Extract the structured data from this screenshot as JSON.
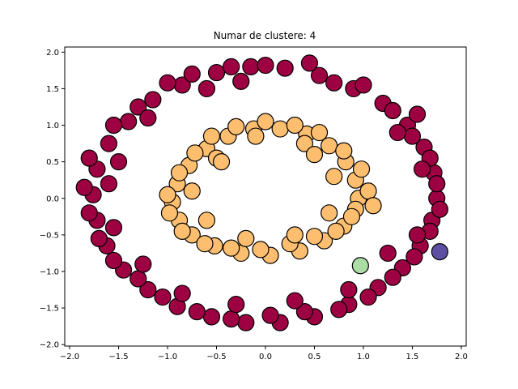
{
  "chart_data": {
    "type": "scatter",
    "title": "Numar de clustere: 4",
    "xlabel": "",
    "ylabel": "",
    "xlim": [
      -2.05,
      2.05
    ],
    "ylim": [
      -2.02,
      2.07
    ],
    "xticks": [
      -2.0,
      -1.5,
      -1.0,
      -0.5,
      0.0,
      0.5,
      1.0,
      1.5,
      2.0
    ],
    "xtick_labels": [
      "−2.0",
      "−1.5",
      "−1.0",
      "−0.5",
      "0.0",
      "0.5",
      "1.0",
      "1.5",
      "2.0"
    ],
    "yticks": [
      -2.0,
      -1.5,
      -1.0,
      -0.5,
      0.0,
      0.5,
      1.0,
      1.5,
      2.0
    ],
    "ytick_labels": [
      "−2.0",
      "−1.5",
      "−1.0",
      "−0.5",
      "0.0",
      "0.5",
      "1.0",
      "1.5",
      "2.0"
    ],
    "grid": false,
    "legend": null,
    "marker_edge_color": "#000000",
    "clusters": [
      {
        "color": "#9e0142",
        "description_shape": "outer ring",
        "points": [
          [
            1.75,
            0.0
          ],
          [
            1.72,
            0.35
          ],
          [
            1.62,
            0.7
          ],
          [
            1.45,
            1.0
          ],
          [
            1.2,
            1.3
          ],
          [
            0.9,
            1.5
          ],
          [
            0.55,
            1.68
          ],
          [
            0.2,
            1.78
          ],
          [
            -0.15,
            1.8
          ],
          [
            -0.5,
            1.72
          ],
          [
            -0.85,
            1.55
          ],
          [
            -1.15,
            1.35
          ],
          [
            -1.4,
            1.05
          ],
          [
            -1.6,
            0.75
          ],
          [
            -1.72,
            0.4
          ],
          [
            -1.76,
            0.05
          ],
          [
            -1.72,
            -0.3
          ],
          [
            -1.62,
            -0.65
          ],
          [
            -1.45,
            -0.98
          ],
          [
            -1.2,
            -1.25
          ],
          [
            -0.9,
            -1.48
          ],
          [
            -0.55,
            -1.62
          ],
          [
            -0.2,
            -1.7
          ],
          [
            0.15,
            -1.7
          ],
          [
            0.5,
            -1.62
          ],
          [
            0.85,
            -1.45
          ],
          [
            1.15,
            -1.22
          ],
          [
            1.4,
            -0.95
          ],
          [
            1.58,
            -0.65
          ],
          [
            1.7,
            -0.3
          ],
          [
            1.55,
            1.15
          ],
          [
            1.3,
            1.2
          ],
          [
            1.0,
            1.55
          ],
          [
            0.45,
            1.85
          ],
          [
            0.0,
            1.82
          ],
          [
            -0.35,
            1.8
          ],
          [
            -0.75,
            1.7
          ],
          [
            -1.0,
            1.58
          ],
          [
            -1.3,
            1.25
          ],
          [
            -1.55,
            1.0
          ],
          [
            -1.8,
            0.55
          ],
          [
            -1.85,
            0.15
          ],
          [
            -1.8,
            -0.2
          ],
          [
            -1.7,
            -0.55
          ],
          [
            -1.55,
            -0.85
          ],
          [
            -1.3,
            -1.1
          ],
          [
            -1.05,
            -1.35
          ],
          [
            -0.7,
            -1.55
          ],
          [
            -0.35,
            -1.65
          ],
          [
            0.05,
            -1.6
          ],
          [
            0.4,
            -1.55
          ],
          [
            0.75,
            -1.52
          ],
          [
            1.05,
            -1.35
          ],
          [
            1.3,
            -1.08
          ],
          [
            1.52,
            -0.8
          ],
          [
            1.68,
            -0.45
          ],
          [
            1.78,
            -0.15
          ],
          [
            1.75,
            0.2
          ],
          [
            1.68,
            0.55
          ],
          [
            1.5,
            0.85
          ],
          [
            1.35,
            0.9
          ],
          [
            0.7,
            1.58
          ],
          [
            -0.25,
            1.6
          ],
          [
            -0.6,
            1.5
          ],
          [
            -1.2,
            1.1
          ],
          [
            -1.5,
            0.5
          ],
          [
            -1.6,
            0.2
          ],
          [
            -1.55,
            -0.4
          ],
          [
            -1.25,
            -0.9
          ],
          [
            -0.85,
            -1.3
          ],
          [
            -0.3,
            -1.45
          ],
          [
            0.3,
            -1.4
          ],
          [
            0.85,
            -1.25
          ],
          [
            1.25,
            -0.75
          ],
          [
            1.55,
            -0.5
          ],
          [
            1.6,
            0.4
          ]
        ]
      },
      {
        "color": "#fdbf6f",
        "description_shape": "inner ring",
        "points": [
          [
            0.95,
            0.0
          ],
          [
            0.92,
            0.25
          ],
          [
            0.82,
            0.5
          ],
          [
            0.65,
            0.72
          ],
          [
            0.42,
            0.88
          ],
          [
            0.15,
            0.95
          ],
          [
            -0.12,
            0.95
          ],
          [
            -0.38,
            0.85
          ],
          [
            -0.6,
            0.68
          ],
          [
            -0.78,
            0.45
          ],
          [
            -0.9,
            0.2
          ],
          [
            -0.95,
            -0.05
          ],
          [
            -0.88,
            -0.3
          ],
          [
            -0.75,
            -0.5
          ],
          [
            -0.52,
            -0.65
          ],
          [
            -0.25,
            -0.75
          ],
          [
            0.05,
            -0.78
          ],
          [
            0.35,
            -0.72
          ],
          [
            0.6,
            -0.58
          ],
          [
            0.8,
            -0.38
          ],
          [
            0.92,
            -0.15
          ],
          [
            1.05,
            0.1
          ],
          [
            0.98,
            0.4
          ],
          [
            0.8,
            0.65
          ],
          [
            0.55,
            0.9
          ],
          [
            0.3,
            1.0
          ],
          [
            0.0,
            1.05
          ],
          [
            -0.3,
            0.98
          ],
          [
            -0.55,
            0.85
          ],
          [
            -0.72,
            0.62
          ],
          [
            -0.88,
            0.35
          ],
          [
            -1.0,
            0.05
          ],
          [
            -0.98,
            -0.2
          ],
          [
            -0.85,
            -0.45
          ],
          [
            -0.62,
            -0.62
          ],
          [
            -0.35,
            -0.68
          ],
          [
            -0.05,
            -0.7
          ],
          [
            0.25,
            -0.62
          ],
          [
            0.5,
            -0.52
          ],
          [
            0.72,
            -0.45
          ],
          [
            0.88,
            -0.25
          ],
          [
            0.7,
            0.3
          ],
          [
            0.4,
            0.75
          ],
          [
            -0.1,
            0.85
          ],
          [
            -0.5,
            0.55
          ],
          [
            -0.75,
            0.1
          ],
          [
            -0.6,
            -0.3
          ],
          [
            -0.2,
            -0.55
          ],
          [
            0.3,
            -0.5
          ],
          [
            0.65,
            -0.2
          ],
          [
            1.1,
            -0.1
          ],
          [
            -0.45,
            0.5
          ],
          [
            0.5,
            0.6
          ]
        ]
      },
      {
        "color": "#abdda4",
        "description_shape": "single point",
        "points": [
          [
            0.97,
            -0.92
          ]
        ]
      },
      {
        "color": "#5e4fa2",
        "description_shape": "single point",
        "points": [
          [
            1.78,
            -0.73
          ]
        ]
      }
    ]
  }
}
